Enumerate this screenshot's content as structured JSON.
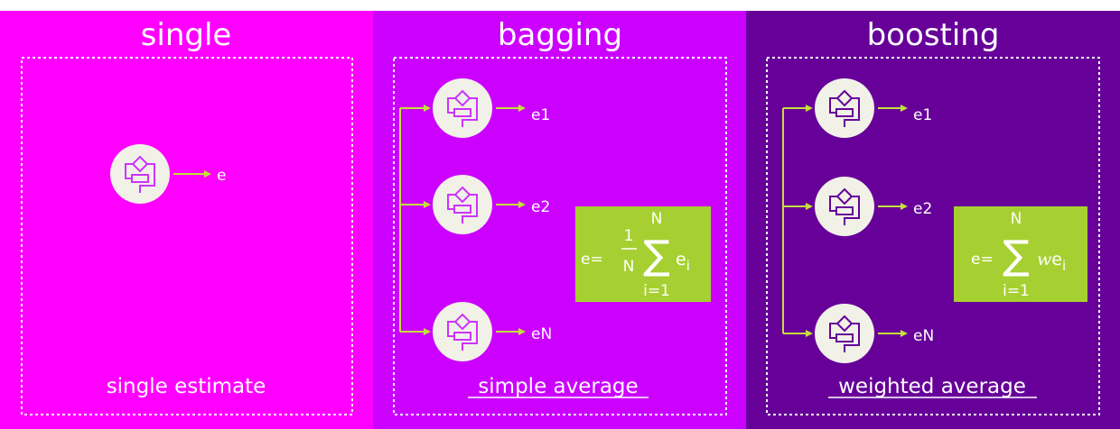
{
  "panels": [
    {
      "title": "single",
      "caption": "single estimate",
      "caption_underlined": false,
      "background": "#ff00ff",
      "outputs": [
        "e"
      ]
    },
    {
      "title": "bagging",
      "caption": "simple average",
      "caption_underlined": true,
      "background": "#cc00ff",
      "outputs": [
        "e1",
        "e2",
        "eN"
      ],
      "formula": {
        "lhs": "e=",
        "frac_num": "1",
        "frac_den": "N",
        "sum_upper": "N",
        "sum_lower": "i=1",
        "sigma": "∑",
        "term": "e",
        "term_sub": "i"
      }
    },
    {
      "title": "boosting",
      "caption": "weighted average",
      "caption_underlined": true,
      "background": "#660099",
      "outputs": [
        "e1",
        "e2",
        "eN"
      ],
      "formula": {
        "lhs": "e=",
        "sum_upper": "N",
        "sum_lower": "i=1",
        "sigma": "∑",
        "weight": "w",
        "term": "e",
        "term_sub": "i"
      }
    }
  ],
  "colors": {
    "top_bar": "#ffffff",
    "text": "#ffffff",
    "node_fill": "#f1f1e8",
    "arrow": "#c4e03a",
    "formula_box": "#a6d031",
    "formula_text": "#ffffff"
  },
  "icons": {
    "model_node": "flowchart-icon"
  }
}
